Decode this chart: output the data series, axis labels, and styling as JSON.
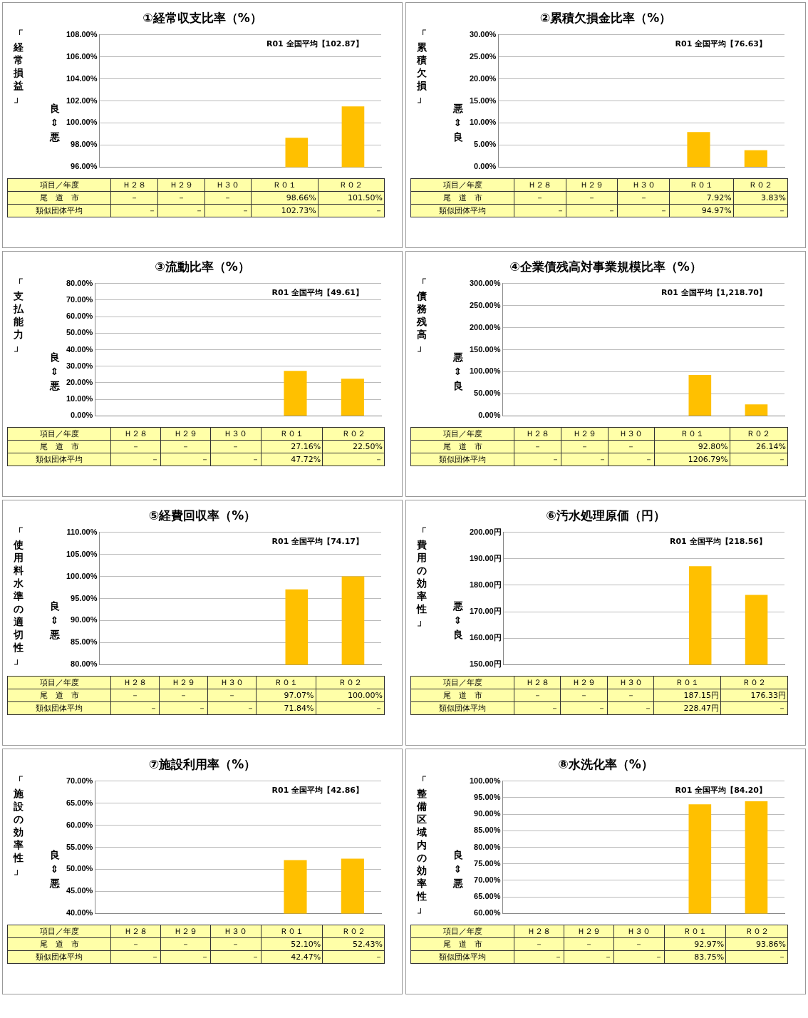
{
  "chart_data": [
    {
      "type": "bar",
      "title": "①経常収支比率（%）",
      "ylabel": "「経常損益」",
      "xlabel": "項目／年度",
      "categories": [
        "Ｈ２８",
        "Ｈ２９",
        "Ｈ３０",
        "Ｒ０１",
        "Ｒ０２"
      ],
      "series": [
        {
          "name": "尾　道　市",
          "color": "#ffc000",
          "values": [
            null,
            null,
            null,
            98.66,
            101.5
          ],
          "value_labels": [
            "－",
            "－",
            "－",
            "98.66%",
            "101.50%"
          ]
        },
        {
          "name": "類似団体平均",
          "values": [
            null,
            null,
            null,
            null,
            null
          ],
          "value_labels": [
            "－",
            "－",
            "－",
            "102.73%",
            "－"
          ]
        }
      ],
      "ylim": [
        96,
        108
      ],
      "yticks": [
        {
          "value": 96,
          "label": "96.00%"
        },
        {
          "value": 98,
          "label": "98.00%"
        },
        {
          "value": 100,
          "label": "100.00%"
        },
        {
          "value": 102,
          "label": "102.00%"
        },
        {
          "value": 104,
          "label": "104.00%"
        },
        {
          "value": 106,
          "label": "106.00%"
        },
        {
          "value": 108,
          "label": "108.00%"
        }
      ],
      "grid": "y",
      "tick_labels": "y",
      "annotations": [
        "R01 全国平均【102.87】",
        "良⇕悪"
      ]
    },
    {
      "type": "bar",
      "title": "②累積欠損金比率（%）",
      "ylabel": "「累積欠損」",
      "xlabel": "項目／年度",
      "categories": [
        "Ｈ２８",
        "Ｈ２９",
        "Ｈ３０",
        "Ｒ０１",
        "Ｒ０２"
      ],
      "series": [
        {
          "name": "尾　道　市",
          "color": "#ffc000",
          "values": [
            null,
            null,
            null,
            7.92,
            3.83
          ],
          "value_labels": [
            "－",
            "－",
            "－",
            "7.92%",
            "3.83%"
          ]
        },
        {
          "name": "類似団体平均",
          "values": [
            null,
            null,
            null,
            null,
            null
          ],
          "value_labels": [
            "－",
            "－",
            "－",
            "94.97%",
            "－"
          ]
        }
      ],
      "ylim": [
        0,
        30
      ],
      "yticks": [
        {
          "value": 0,
          "label": "0.00%"
        },
        {
          "value": 5,
          "label": "5.00%"
        },
        {
          "value": 10,
          "label": "10.00%"
        },
        {
          "value": 15,
          "label": "15.00%"
        },
        {
          "value": 20,
          "label": "20.00%"
        },
        {
          "value": 25,
          "label": "25.00%"
        },
        {
          "value": 30,
          "label": "30.00%"
        }
      ],
      "grid": "y",
      "tick_labels": "y",
      "annotations": [
        "R01 全国平均【76.63】",
        "悪⇕良"
      ]
    },
    {
      "type": "bar",
      "title": "③流動比率（%）",
      "ylabel": "「支払能力」",
      "xlabel": "項目／年度",
      "categories": [
        "Ｈ２８",
        "Ｈ２９",
        "Ｈ３０",
        "Ｒ０１",
        "Ｒ０２"
      ],
      "series": [
        {
          "name": "尾　道　市",
          "color": "#ffc000",
          "values": [
            null,
            null,
            null,
            27.16,
            22.5
          ],
          "value_labels": [
            "－",
            "－",
            "－",
            "27.16%",
            "22.50%"
          ]
        },
        {
          "name": "類似団体平均",
          "values": [
            null,
            null,
            null,
            null,
            null
          ],
          "value_labels": [
            "－",
            "－",
            "－",
            "47.72%",
            "－"
          ]
        }
      ],
      "ylim": [
        0,
        80
      ],
      "yticks": [
        {
          "value": 0,
          "label": "0.00%"
        },
        {
          "value": 10,
          "label": "10.00%"
        },
        {
          "value": 20,
          "label": "20.00%"
        },
        {
          "value": 30,
          "label": "30.00%"
        },
        {
          "value": 40,
          "label": "40.00%"
        },
        {
          "value": 50,
          "label": "50.00%"
        },
        {
          "value": 60,
          "label": "60.00%"
        },
        {
          "value": 70,
          "label": "70.00%"
        },
        {
          "value": 80,
          "label": "80.00%"
        }
      ],
      "grid": "y",
      "tick_labels": "y",
      "annotations": [
        "R01 全国平均【49.61】",
        "良⇕悪"
      ]
    },
    {
      "type": "bar",
      "title": "④企業債残高対事業規模比率（%）",
      "ylabel": "「債務残高」",
      "xlabel": "項目／年度",
      "categories": [
        "Ｈ２８",
        "Ｈ２９",
        "Ｈ３０",
        "Ｒ０１",
        "Ｒ０２"
      ],
      "series": [
        {
          "name": "尾　道　市",
          "color": "#ffc000",
          "values": [
            null,
            null,
            null,
            92.8,
            26.14
          ],
          "value_labels": [
            "－",
            "－",
            "－",
            "92.80%",
            "26.14%"
          ]
        },
        {
          "name": "類似団体平均",
          "values": [
            null,
            null,
            null,
            null,
            null
          ],
          "value_labels": [
            "－",
            "－",
            "－",
            "1206.79%",
            "－"
          ]
        }
      ],
      "ylim": [
        0,
        300
      ],
      "yticks": [
        {
          "value": 0,
          "label": "0.00%"
        },
        {
          "value": 50,
          "label": "50.00%"
        },
        {
          "value": 100,
          "label": "100.00%"
        },
        {
          "value": 150,
          "label": "150.00%"
        },
        {
          "value": 200,
          "label": "200.00%"
        },
        {
          "value": 250,
          "label": "250.00%"
        },
        {
          "value": 300,
          "label": "300.00%"
        }
      ],
      "grid": "y",
      "tick_labels": "y",
      "annotations": [
        "R01 全国平均【1,218.70】",
        "悪⇕良"
      ]
    },
    {
      "type": "bar",
      "title": "⑤経費回収率（%）",
      "ylabel": "「使用料水準の適切性」",
      "xlabel": "項目／年度",
      "categories": [
        "Ｈ２８",
        "Ｈ２９",
        "Ｈ３０",
        "Ｒ０１",
        "Ｒ０２"
      ],
      "series": [
        {
          "name": "尾　道　市",
          "color": "#ffc000",
          "values": [
            null,
            null,
            null,
            97.07,
            100.0
          ],
          "value_labels": [
            "－",
            "－",
            "－",
            "97.07%",
            "100.00%"
          ]
        },
        {
          "name": "類似団体平均",
          "values": [
            null,
            null,
            null,
            null,
            null
          ],
          "value_labels": [
            "－",
            "－",
            "－",
            "71.84%",
            "－"
          ]
        }
      ],
      "ylim": [
        80,
        110
      ],
      "yticks": [
        {
          "value": 80,
          "label": "80.00%"
        },
        {
          "value": 85,
          "label": "85.00%"
        },
        {
          "value": 90,
          "label": "90.00%"
        },
        {
          "value": 95,
          "label": "95.00%"
        },
        {
          "value": 100,
          "label": "100.00%"
        },
        {
          "value": 105,
          "label": "105.00%"
        },
        {
          "value": 110,
          "label": "110.00%"
        }
      ],
      "grid": "y",
      "tick_labels": "y",
      "annotations": [
        "R01 全国平均【74.17】",
        "良⇕悪"
      ]
    },
    {
      "type": "bar",
      "title": "⑥汚水処理原価（円）",
      "ylabel": "「費用の効率性」",
      "xlabel": "項目／年度",
      "categories": [
        "Ｈ２８",
        "Ｈ２９",
        "Ｈ３０",
        "Ｒ０１",
        "Ｒ０２"
      ],
      "series": [
        {
          "name": "尾　道　市",
          "color": "#ffc000",
          "values": [
            null,
            null,
            null,
            187.15,
            176.33
          ],
          "value_labels": [
            "－",
            "－",
            "－",
            "187.15円",
            "176.33円"
          ]
        },
        {
          "name": "類似団体平均",
          "values": [
            null,
            null,
            null,
            null,
            null
          ],
          "value_labels": [
            "－",
            "－",
            "－",
            "228.47円",
            "－"
          ]
        }
      ],
      "ylim": [
        150,
        200
      ],
      "yticks": [
        {
          "value": 150,
          "label": "150.00円"
        },
        {
          "value": 160,
          "label": "160.00円"
        },
        {
          "value": 170,
          "label": "170.00円"
        },
        {
          "value": 180,
          "label": "180.00円"
        },
        {
          "value": 190,
          "label": "190.00円"
        },
        {
          "value": 200,
          "label": "200.00円"
        }
      ],
      "grid": "y",
      "tick_labels": "y",
      "annotations": [
        "R01 全国平均【218.56】",
        "悪⇕良"
      ]
    },
    {
      "type": "bar",
      "title": "⑦施設利用率（%）",
      "ylabel": "「施設の効率性」",
      "xlabel": "項目／年度",
      "categories": [
        "Ｈ２８",
        "Ｈ２９",
        "Ｈ３０",
        "Ｒ０１",
        "Ｒ０２"
      ],
      "series": [
        {
          "name": "尾　道　市",
          "color": "#ffc000",
          "values": [
            null,
            null,
            null,
            52.1,
            52.43
          ],
          "value_labels": [
            "－",
            "－",
            "－",
            "52.10%",
            "52.43%"
          ]
        },
        {
          "name": "類似団体平均",
          "values": [
            null,
            null,
            null,
            null,
            null
          ],
          "value_labels": [
            "－",
            "－",
            "－",
            "42.47%",
            "－"
          ]
        }
      ],
      "ylim": [
        40,
        70
      ],
      "yticks": [
        {
          "value": 40,
          "label": "40.00%"
        },
        {
          "value": 45,
          "label": "45.00%"
        },
        {
          "value": 50,
          "label": "50.00%"
        },
        {
          "value": 55,
          "label": "55.00%"
        },
        {
          "value": 60,
          "label": "60.00%"
        },
        {
          "value": 65,
          "label": "65.00%"
        },
        {
          "value": 70,
          "label": "70.00%"
        }
      ],
      "grid": "y",
      "tick_labels": "y",
      "annotations": [
        "R01 全国平均【42.86】",
        "良⇕悪"
      ]
    },
    {
      "type": "bar",
      "title": "⑧水洗化率（%）",
      "ylabel": "「整備区域内の効率性」",
      "xlabel": "項目／年度",
      "categories": [
        "Ｈ２８",
        "Ｈ２９",
        "Ｈ３０",
        "Ｒ０１",
        "Ｒ０２"
      ],
      "series": [
        {
          "name": "尾　道　市",
          "color": "#ffc000",
          "values": [
            null,
            null,
            null,
            92.97,
            93.86
          ],
          "value_labels": [
            "－",
            "－",
            "－",
            "92.97%",
            "93.86%"
          ]
        },
        {
          "name": "類似団体平均",
          "values": [
            null,
            null,
            null,
            null,
            null
          ],
          "value_labels": [
            "－",
            "－",
            "－",
            "83.75%",
            "－"
          ]
        }
      ],
      "ylim": [
        60,
        100
      ],
      "yticks": [
        {
          "value": 60,
          "label": "60.00%"
        },
        {
          "value": 65,
          "label": "65.00%"
        },
        {
          "value": 70,
          "label": "70.00%"
        },
        {
          "value": 75,
          "label": "75.00%"
        },
        {
          "value": 80,
          "label": "80.00%"
        },
        {
          "value": 85,
          "label": "85.00%"
        },
        {
          "value": 90,
          "label": "90.00%"
        },
        {
          "value": 95,
          "label": "95.00%"
        },
        {
          "value": 100,
          "label": "100.00%"
        }
      ],
      "grid": "y",
      "tick_labels": "y",
      "annotations": [
        "R01 全国平均【84.20】",
        "良⇕悪"
      ]
    }
  ]
}
